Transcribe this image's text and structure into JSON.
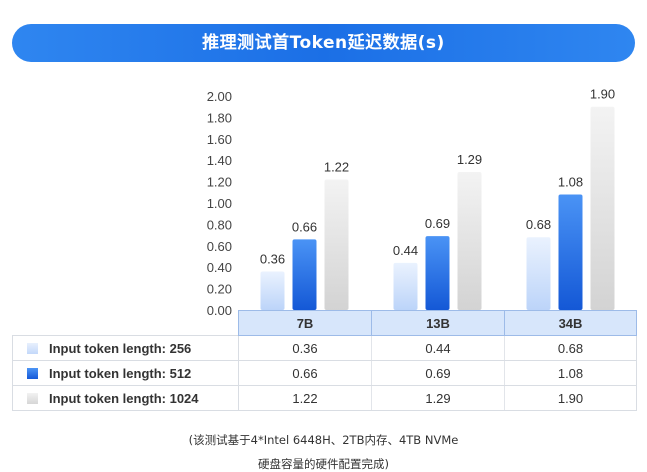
{
  "title": "推理测试首Token延迟数据(s)",
  "chart_data": {
    "type": "bar",
    "categories": [
      "7B",
      "13B",
      "34B"
    ],
    "series": [
      {
        "name": "Input token length: 256",
        "values": [
          0.36,
          0.44,
          0.68
        ],
        "labels": [
          "0.36",
          "0.44",
          "0.68"
        ],
        "color": "#cfe0fb"
      },
      {
        "name": "Input token length: 512",
        "values": [
          0.66,
          0.69,
          1.08
        ],
        "labels": [
          "0.66",
          "0.69",
          "1.08"
        ],
        "color": "#1f6fe5"
      },
      {
        "name": "Input token length: 1024",
        "values": [
          1.22,
          1.29,
          1.9
        ],
        "labels": [
          "1.22",
          "1.29",
          "1.90"
        ],
        "color": "#e3e3e3"
      }
    ],
    "ylim": [
      0,
      2.0
    ],
    "yticks": [
      "0.00",
      "0.20",
      "0.40",
      "0.60",
      "0.80",
      "1.00",
      "1.20",
      "1.40",
      "1.60",
      "1.80",
      "2.00"
    ],
    "grid": false,
    "legend": "data-table"
  },
  "footnote": {
    "line1": "(该测试基于4*Intel 6448H、2TB内存、4TB NVMe",
    "line2": "硬盘容量的硬件配置完成)"
  }
}
